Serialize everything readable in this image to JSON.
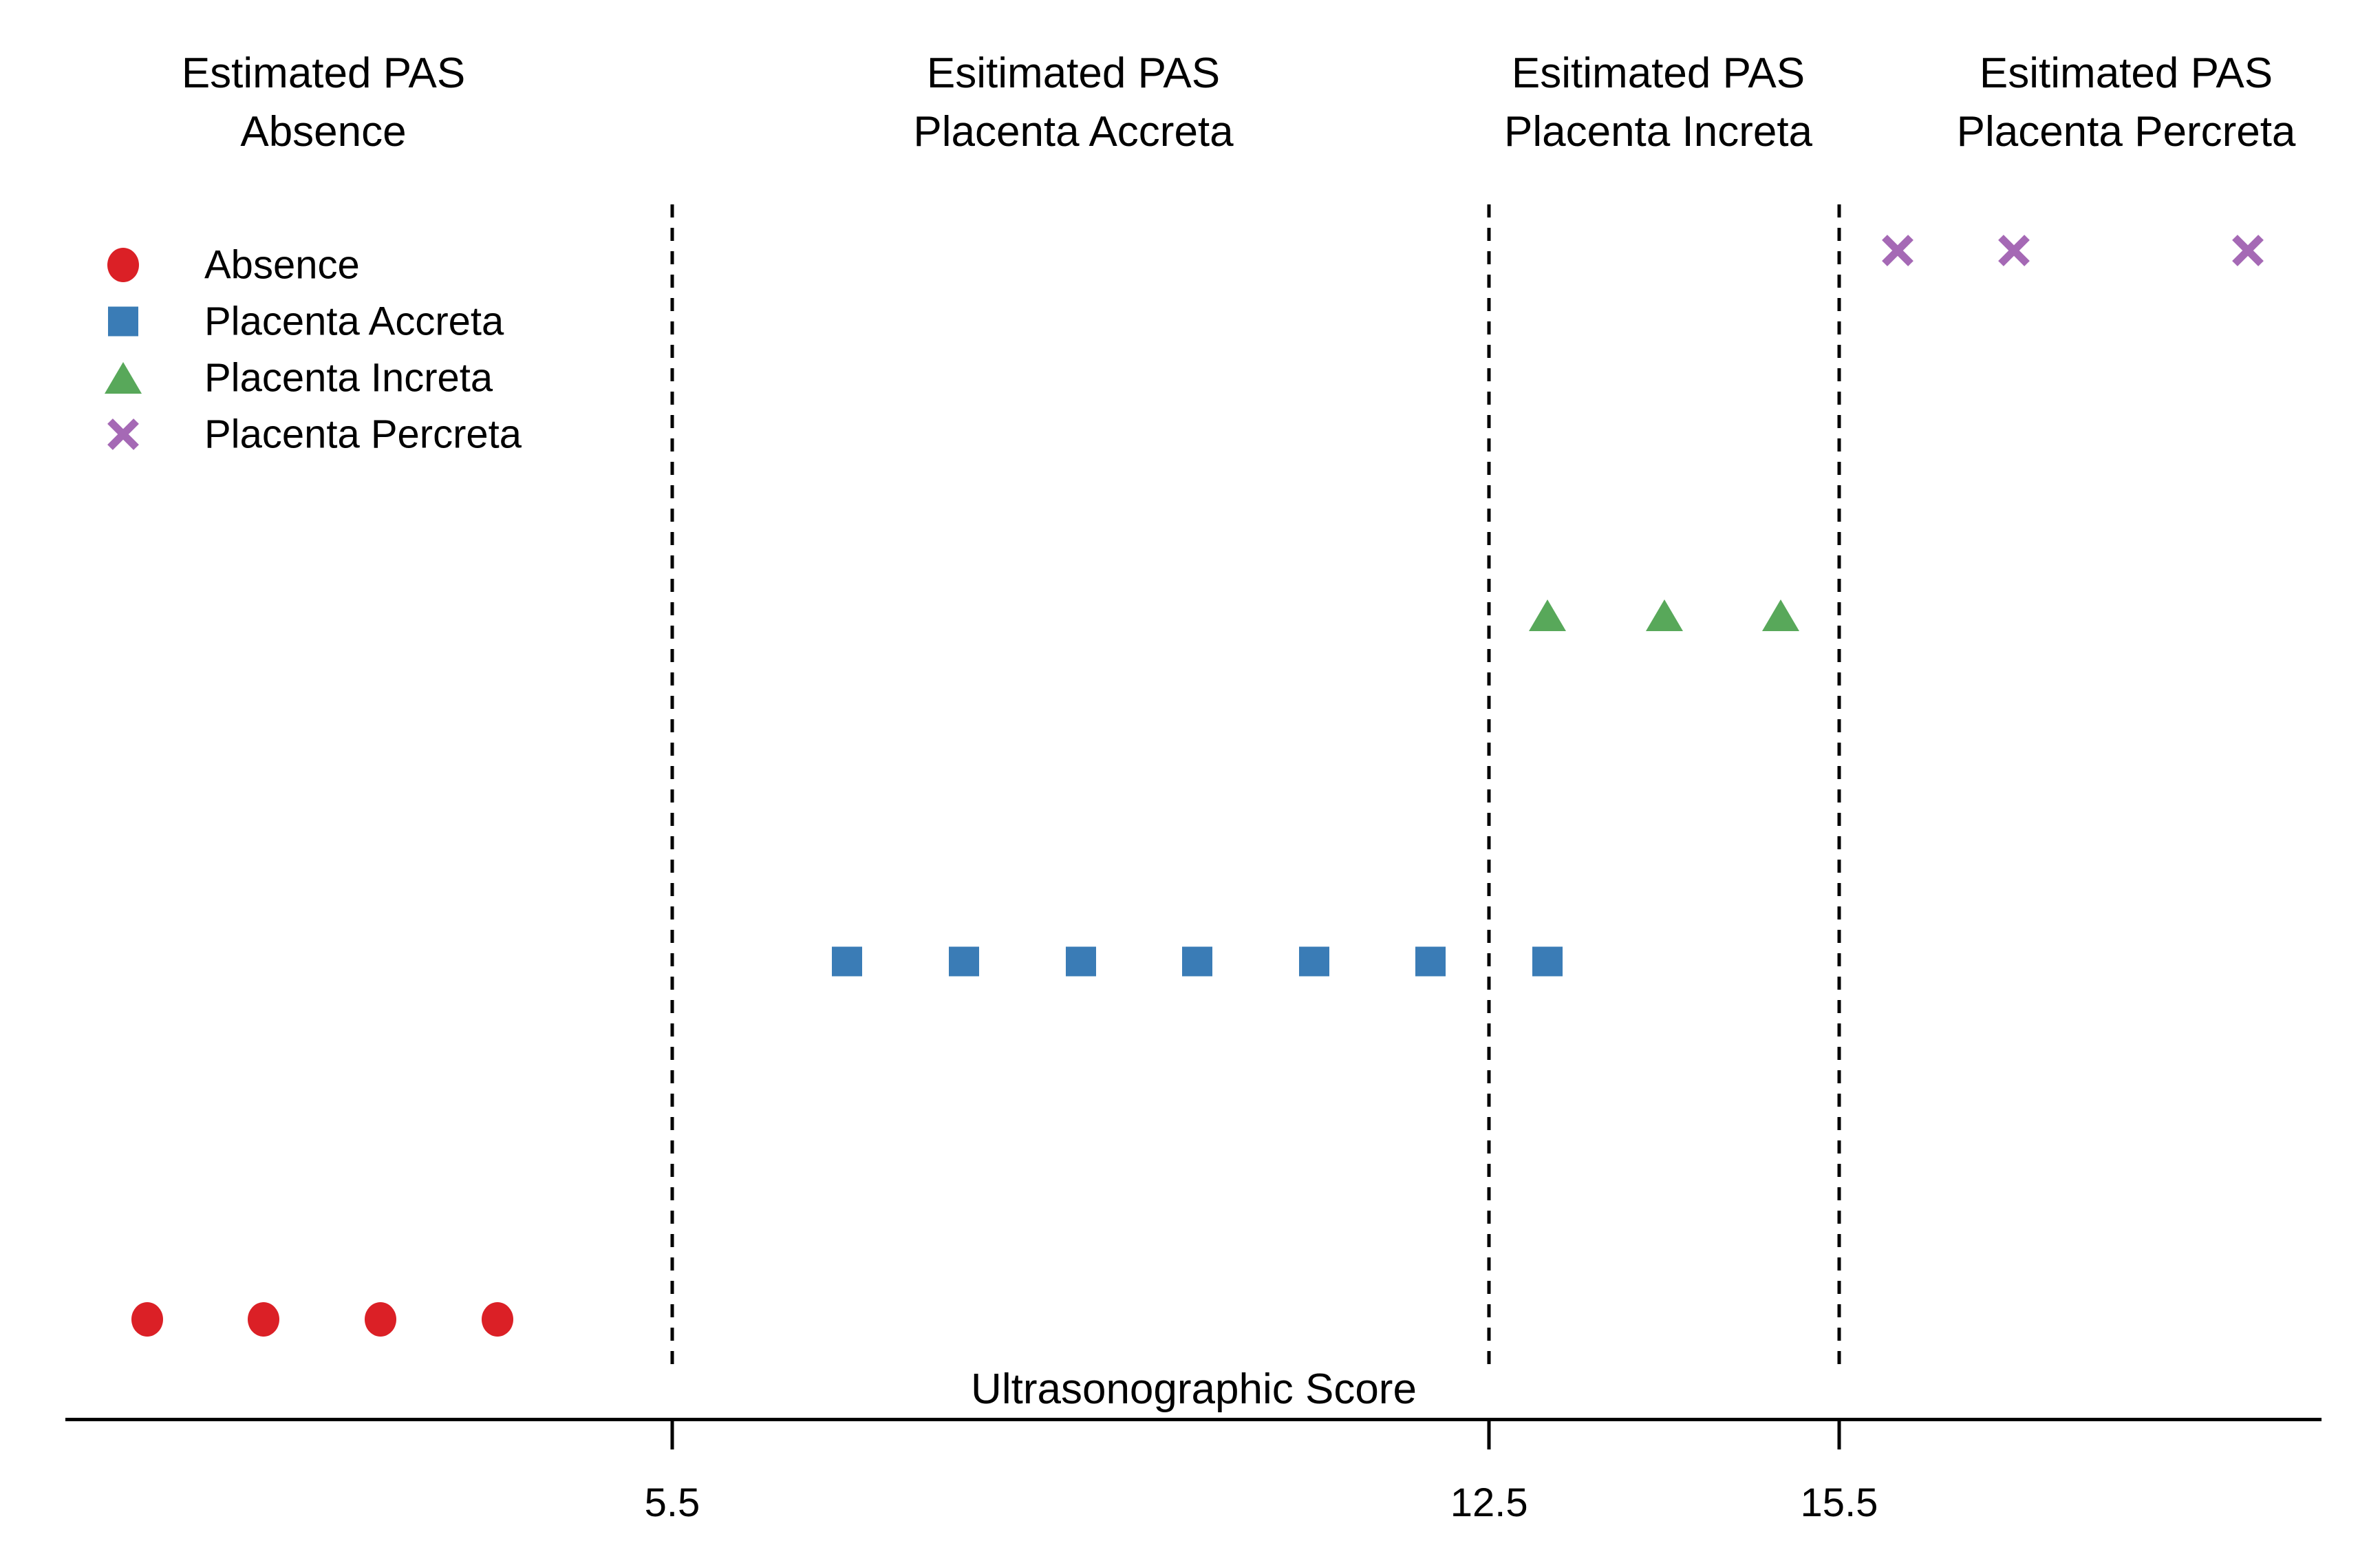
{
  "page": {
    "background": "#FFFFFF"
  },
  "chart_data": {
    "type": "scatter",
    "xlabel": "Ultrasonographic Score",
    "x_ticks": [
      5.5,
      12.5,
      15.5
    ],
    "x_tick_labels": [
      "5.5",
      "12.5",
      "15.5"
    ],
    "region_boundaries": [
      5.5,
      12.5,
      15.5
    ],
    "x_axis_range": [
      0.3,
      19.6
    ],
    "grid": false,
    "legend_position": "upper-left",
    "region_titles": [
      {
        "line1": "Estimated PAS",
        "line2": "Absence"
      },
      {
        "line1": "Esitimated PAS",
        "line2": "Placenta Accreta"
      },
      {
        "line1": "Esitimated PAS",
        "line2": "Placenta Increta"
      },
      {
        "line1": "Esitimated PAS",
        "line2": "Placenta Percreta"
      }
    ],
    "series": [
      {
        "name": "Absence",
        "marker": "circle",
        "color": "#DB2026",
        "row": 1,
        "x": [
          1,
          2,
          3,
          4
        ]
      },
      {
        "name": "Placenta Accreta",
        "marker": "square",
        "color": "#3A7CB6",
        "row": 2,
        "x": [
          7,
          8,
          9,
          10,
          11,
          12,
          13
        ]
      },
      {
        "name": "Placenta Increta",
        "marker": "triangle",
        "color": "#58A85A",
        "row": 3,
        "x": [
          13,
          14,
          15
        ]
      },
      {
        "name": "Placenta Percreta",
        "marker": "x",
        "color": "#A569B5",
        "row": 4,
        "x": [
          16,
          17,
          19
        ]
      }
    ]
  }
}
